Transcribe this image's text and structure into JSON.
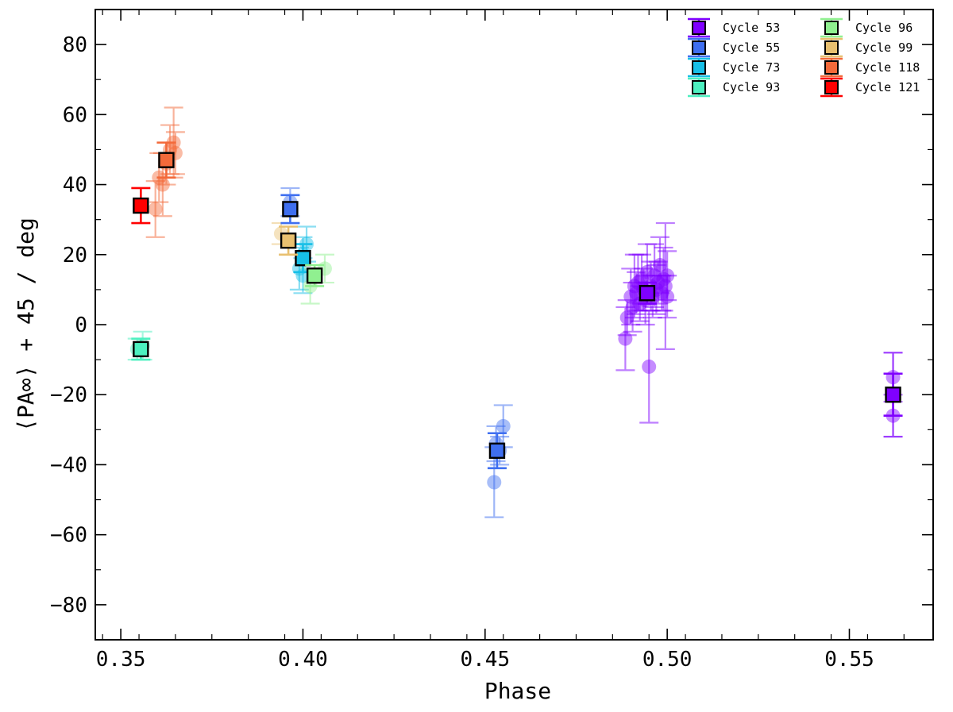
{
  "chart_data": {
    "type": "scatter",
    "xlabel": "Phase",
    "ylabel": "⟨PA∞⟩ + 45 / deg",
    "xlim": [
      0.343,
      0.573
    ],
    "ylim": [
      -90,
      90
    ],
    "xticks": [
      0.35,
      0.4,
      0.45,
      0.5,
      0.55
    ],
    "xtick_labels": [
      "0.35",
      "0.40",
      "0.45",
      "0.50",
      "0.55"
    ],
    "yticks": [
      -80,
      -60,
      -40,
      -20,
      0,
      20,
      40,
      60,
      80
    ],
    "ytick_labels": [
      "−80",
      "−60",
      "−40",
      "−20",
      "0",
      "20",
      "40",
      "60",
      "80"
    ],
    "legend_position": "top-right",
    "series": [
      {
        "name": "Cycle 53",
        "color": "#7f00ff",
        "mean": {
          "x": 0.4945,
          "y": 9,
          "yerr": 3
        },
        "points": [
          {
            "x": 0.4885,
            "y": -4,
            "yerr": 9
          },
          {
            "x": 0.489,
            "y": 2,
            "yerr": 5
          },
          {
            "x": 0.49,
            "y": 8,
            "yerr": 8
          },
          {
            "x": 0.4905,
            "y": 5,
            "yerr": 7
          },
          {
            "x": 0.491,
            "y": 11,
            "yerr": 9
          },
          {
            "x": 0.4915,
            "y": 9,
            "yerr": 6
          },
          {
            "x": 0.492,
            "y": 12,
            "yerr": 8
          },
          {
            "x": 0.4925,
            "y": 6,
            "yerr": 5
          },
          {
            "x": 0.493,
            "y": 13,
            "yerr": 7
          },
          {
            "x": 0.4935,
            "y": 10,
            "yerr": 6
          },
          {
            "x": 0.494,
            "y": 7,
            "yerr": 7
          },
          {
            "x": 0.4945,
            "y": 15,
            "yerr": 8
          },
          {
            "x": 0.495,
            "y": -12,
            "yerr": 16
          },
          {
            "x": 0.4955,
            "y": 11,
            "yerr": 7
          },
          {
            "x": 0.496,
            "y": 8,
            "yerr": 6
          },
          {
            "x": 0.4965,
            "y": 14,
            "yerr": 9
          },
          {
            "x": 0.497,
            "y": 10,
            "yerr": 7
          },
          {
            "x": 0.4975,
            "y": 12,
            "yerr": 6
          },
          {
            "x": 0.498,
            "y": 17,
            "yerr": 8
          },
          {
            "x": 0.4985,
            "y": 9,
            "yerr": 5
          },
          {
            "x": 0.499,
            "y": 13,
            "yerr": 9
          },
          {
            "x": 0.4995,
            "y": 11,
            "yerr": 18
          },
          {
            "x": 0.5,
            "y": 8,
            "yerr": 6
          },
          {
            "x": 0.5,
            "y": 14,
            "yerr": 7
          },
          {
            "x": 0.562,
            "y": -15,
            "yerr": 7
          },
          {
            "x": 0.562,
            "y": -20,
            "yerr": 12
          },
          {
            "x": 0.562,
            "y": -26,
            "yerr": 6
          }
        ],
        "mean2": {
          "x": 0.562,
          "y": -20,
          "yerr": 6
        }
      },
      {
        "name": "Cycle 55",
        "color": "#3f6ff0",
        "mean": {
          "x": 0.4533,
          "y": -36,
          "yerr": 5
        },
        "points": [
          {
            "x": 0.4525,
            "y": -45,
            "yerr": 10
          },
          {
            "x": 0.453,
            "y": -34,
            "yerr": 5
          },
          {
            "x": 0.454,
            "y": -36,
            "yerr": 4
          },
          {
            "x": 0.455,
            "y": -29,
            "yerr": 6
          }
        ],
        "mean2": {
          "x": 0.3965,
          "y": 33,
          "yerr": 4
        },
        "points2": [
          {
            "x": 0.3965,
            "y": 35,
            "yerr": 4
          }
        ]
      },
      {
        "name": "Cycle 73",
        "color": "#17bfe7",
        "mean": {
          "x": 0.4,
          "y": 19,
          "yerr": 4
        },
        "points": [
          {
            "x": 0.399,
            "y": 16,
            "yerr": 6
          },
          {
            "x": 0.4,
            "y": 20,
            "yerr": 5
          },
          {
            "x": 0.401,
            "y": 23,
            "yerr": 5
          },
          {
            "x": 0.4,
            "y": 14,
            "yerr": 5
          }
        ]
      },
      {
        "name": "Cycle 93",
        "color": "#4df0c0",
        "mean": {
          "x": 0.3555,
          "y": -7,
          "yerr": 3
        },
        "points": [
          {
            "x": 0.3545,
            "y": -7,
            "yerr": 3
          },
          {
            "x": 0.356,
            "y": -6,
            "yerr": 4
          }
        ]
      },
      {
        "name": "Cycle 96",
        "color": "#90f090",
        "mean": {
          "x": 0.4032,
          "y": 14,
          "yerr": 3
        },
        "points": [
          {
            "x": 0.402,
            "y": 11,
            "yerr": 5
          },
          {
            "x": 0.406,
            "y": 16,
            "yerr": 4
          }
        ]
      },
      {
        "name": "Cycle 99",
        "color": "#e8c070",
        "mean": {
          "x": 0.396,
          "y": 24,
          "yerr": 4
        },
        "points": [
          {
            "x": 0.394,
            "y": 26,
            "yerr": 3
          }
        ]
      },
      {
        "name": "Cycle 118",
        "color": "#f36a3a",
        "mean": {
          "x": 0.3625,
          "y": 47,
          "yerr": 5
        },
        "points": [
          {
            "x": 0.3595,
            "y": 33,
            "yerr": 8
          },
          {
            "x": 0.3605,
            "y": 42,
            "yerr": 7
          },
          {
            "x": 0.3615,
            "y": 40,
            "yerr": 9
          },
          {
            "x": 0.3625,
            "y": 46,
            "yerr": 6
          },
          {
            "x": 0.3635,
            "y": 50,
            "yerr": 7
          },
          {
            "x": 0.3645,
            "y": 52,
            "yerr": 10
          },
          {
            "x": 0.365,
            "y": 49,
            "yerr": 6
          }
        ]
      },
      {
        "name": "Cycle 121",
        "color": "#ff0000",
        "mean": {
          "x": 0.3555,
          "y": 34,
          "yerr": 5
        },
        "points": []
      }
    ]
  }
}
